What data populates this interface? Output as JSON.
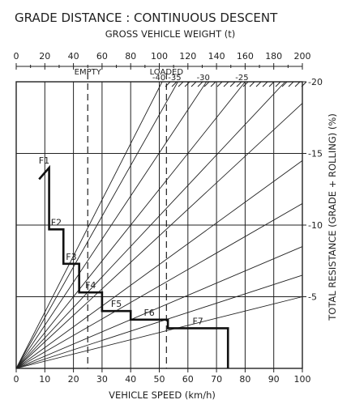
{
  "chart_data": {
    "type": "line",
    "title": "GRADE DISTANCE : CONTINUOUS DESCENT",
    "top_axis": {
      "label": "GROSS VEHICLE WEIGHT (t)",
      "ticks": [
        0,
        20,
        40,
        60,
        80,
        100,
        120,
        140,
        160,
        180,
        200
      ],
      "range": [
        0,
        200
      ]
    },
    "x_axis": {
      "label": "VEHICLE SPEED (km/h)",
      "ticks": [
        0,
        10,
        20,
        30,
        40,
        50,
        60,
        70,
        80,
        90,
        100
      ],
      "range": [
        0,
        100
      ]
    },
    "y_axis": {
      "label": "TOTAL RESISTANCE (GRADE + ROLLING)  (%)",
      "ticks": [
        {
          "value": -5,
          "label": "-5"
        },
        {
          "value": -10,
          "label": "-10"
        },
        {
          "value": -15,
          "label": "-15"
        },
        {
          "value": -20,
          "label": "-20"
        }
      ],
      "range": [
        0,
        -20
      ]
    },
    "weight_markers": [
      {
        "label": "EMPTY",
        "weight": 50
      },
      {
        "label": "LOADED",
        "weight": 105
      }
    ],
    "resistance_lines": [
      {
        "label": "-40",
        "top_weight": 102
      },
      {
        "label": "-35",
        "top_weight": 113
      },
      {
        "label": "-30",
        "top_weight": 133
      },
      {
        "label": "-25",
        "top_weight": 160
      },
      {
        "label": "",
        "top_weight": 188
      },
      {
        "label": "",
        "top_weight": 200,
        "right_resistance": -18.5
      },
      {
        "label": "",
        "top_weight": 200,
        "right_resistance": -14.5
      },
      {
        "label": "",
        "top_weight": 200,
        "right_resistance": -11.5
      },
      {
        "label": "",
        "top_weight": 200,
        "right_resistance": -8.5
      },
      {
        "label": "",
        "top_weight": 200,
        "right_resistance": -6.5
      },
      {
        "label": "",
        "top_weight": 200,
        "right_resistance": -5
      }
    ],
    "gears": [
      {
        "name": "F1",
        "speed_max": 11.5,
        "top": -14,
        "bottom": -9.7
      },
      {
        "name": "F2",
        "speed_max": 16.5,
        "top": -9.7,
        "bottom": -7.3
      },
      {
        "name": "F3",
        "speed_max": 22,
        "top": -7.3,
        "bottom": -5.3
      },
      {
        "name": "F4",
        "speed_max": 30,
        "top": -5.3,
        "bottom": -4
      },
      {
        "name": "F5",
        "speed_max": 40,
        "top": -4,
        "bottom": -3.4
      },
      {
        "name": "F6",
        "speed_max": 53,
        "top": -3.4,
        "bottom": -2.8
      },
      {
        "name": "F7",
        "speed_max": 74,
        "top": -2.8,
        "bottom": 0
      }
    ],
    "gear_curve_start": {
      "speed": 8,
      "resistance": -13.2
    }
  }
}
